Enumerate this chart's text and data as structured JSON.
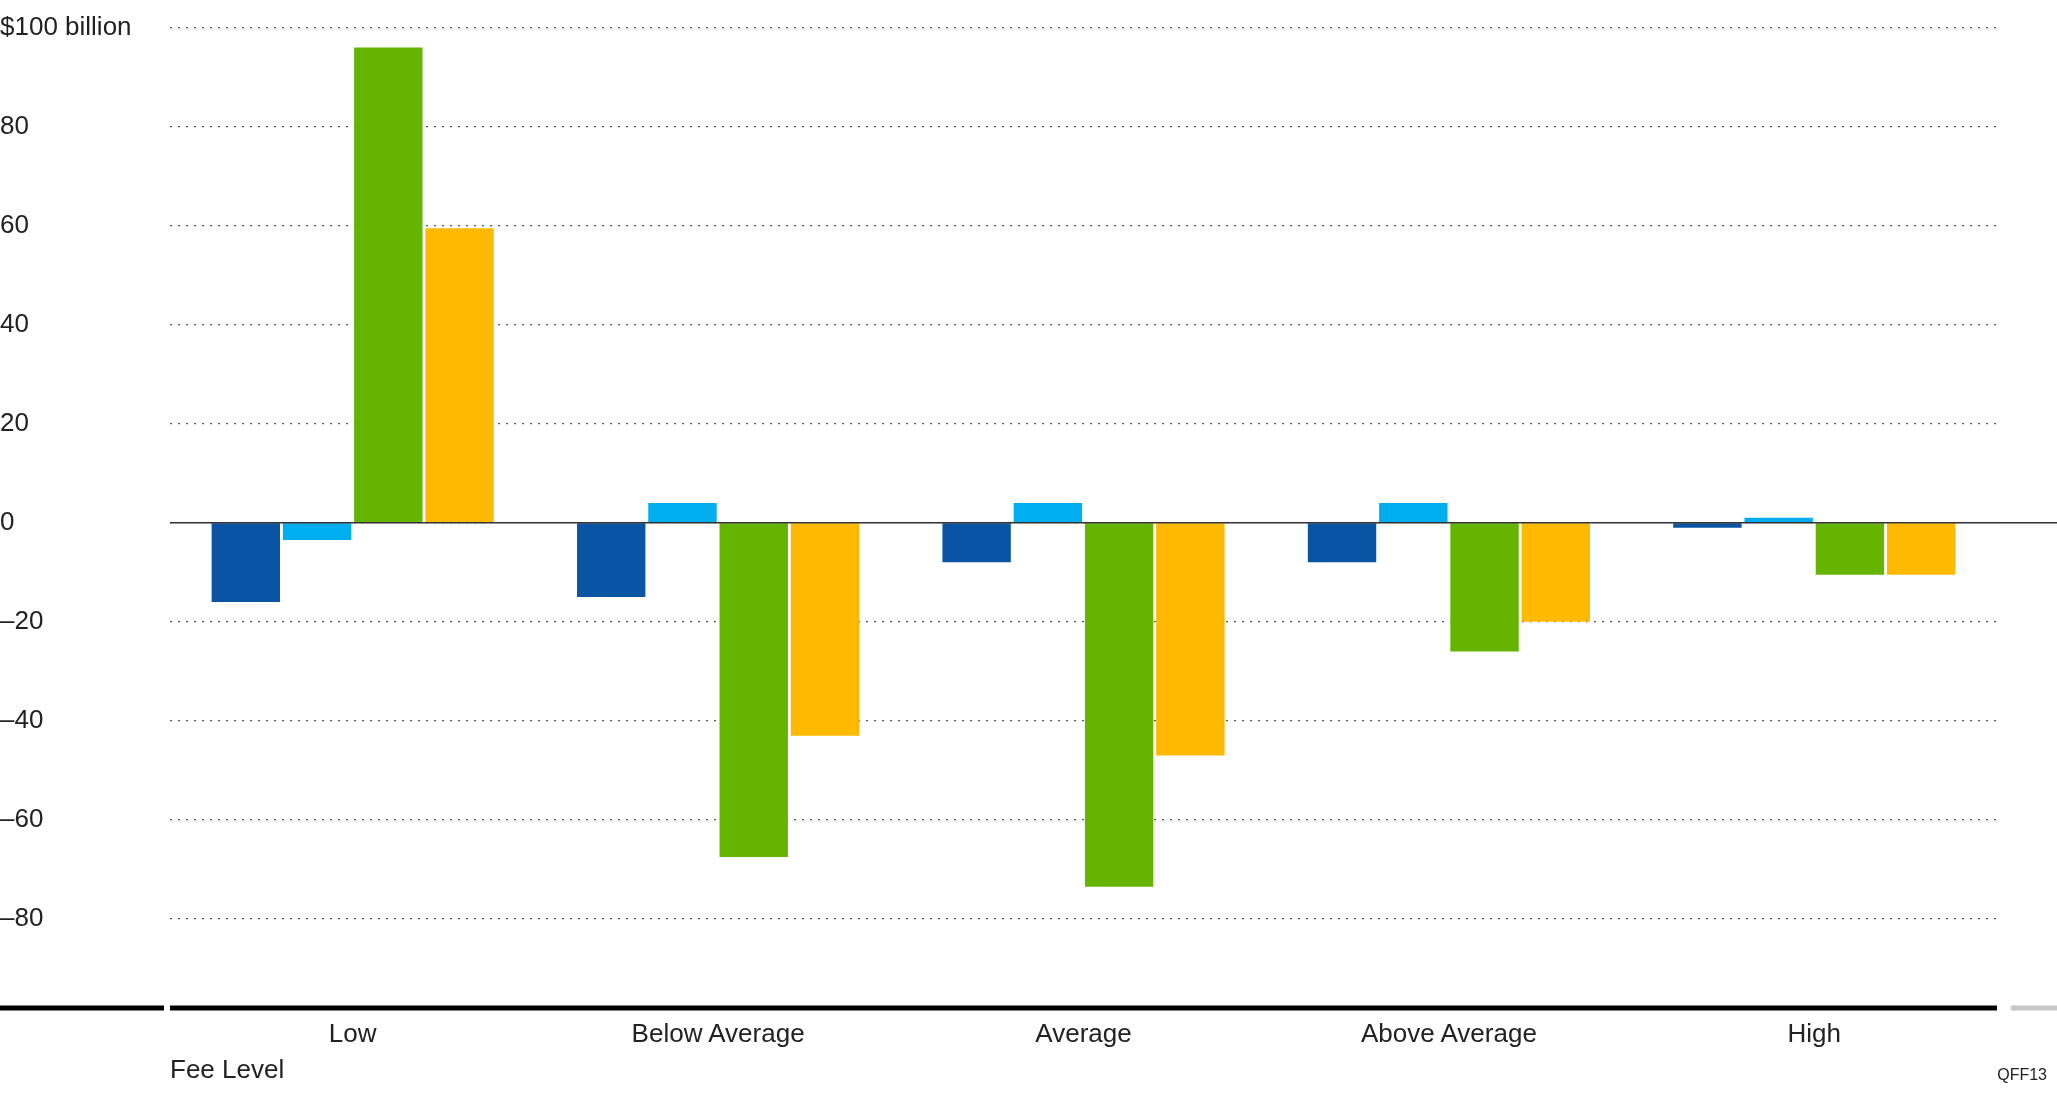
{
  "chart_data": {
    "type": "bar",
    "xlabel": "Fee Level",
    "categories": [
      "Low",
      "Below Average",
      "Average",
      "Above Average",
      "High"
    ],
    "series": [
      {
        "color": "#0a55a3",
        "values": [
          -16,
          -15,
          -8,
          -8,
          -1
        ]
      },
      {
        "color": "#00aeef",
        "values": [
          -3.5,
          4,
          4,
          4,
          1
        ]
      },
      {
        "color": "#64b400",
        "values": [
          96,
          -67.5,
          -73.5,
          -26,
          -10.5
        ]
      },
      {
        "color": "#ffb900",
        "values": [
          59.5,
          -43,
          -47,
          -20,
          -10.5
        ]
      }
    ],
    "ylim": [
      -98,
      100
    ],
    "yticks": [
      {
        "value": -80,
        "label": "–80"
      },
      {
        "value": -60,
        "label": "–60"
      },
      {
        "value": -40,
        "label": "–40"
      },
      {
        "value": -20,
        "label": "–20"
      },
      0,
      20,
      40,
      60,
      80,
      {
        "value": 100,
        "label": "$100 billion"
      }
    ],
    "grid": "y",
    "legend": false,
    "annotations": [
      "QFF13"
    ]
  }
}
